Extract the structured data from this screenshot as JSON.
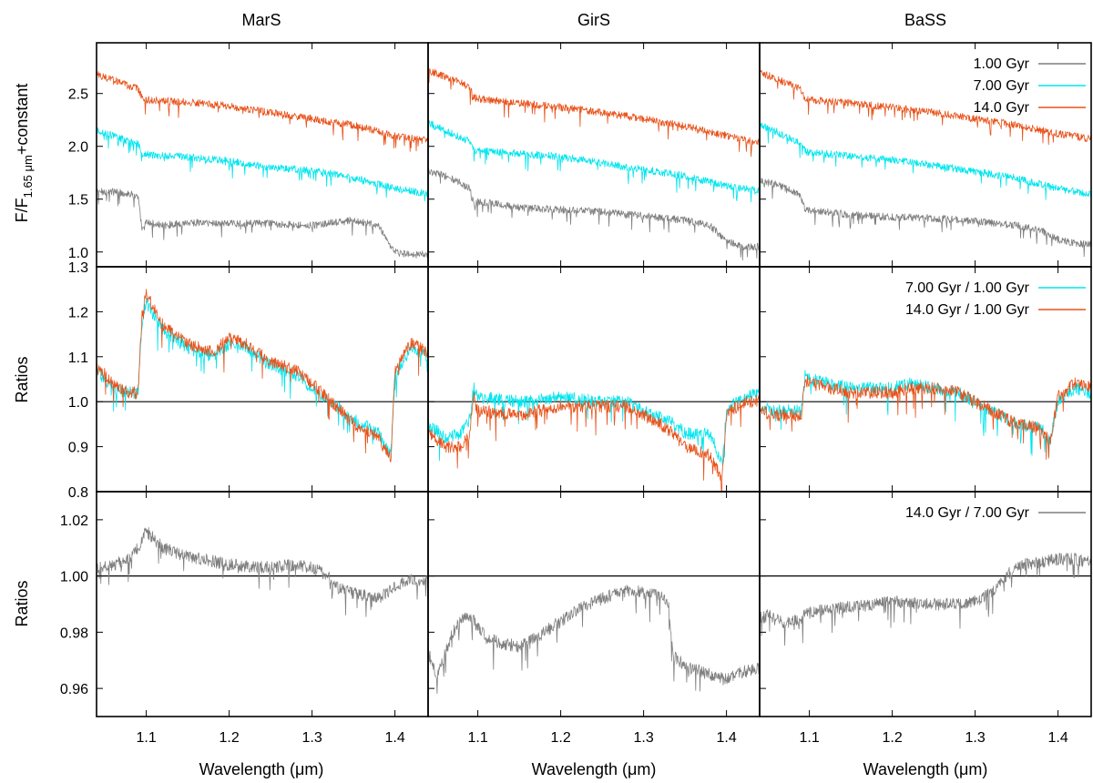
{
  "figure": {
    "column_titles": [
      "MarS",
      "GirS",
      "BaSS"
    ],
    "xlabel": "Wavelength (μm)",
    "row_ylabels": {
      "top_main": "F/F",
      "top_sub": "1.65 μm",
      "top_tail": "+constant",
      "middle": "Ratios",
      "bottom": "Ratios"
    }
  },
  "legends": {
    "top": [
      "1.00 Gyr",
      "7.00 Gyr",
      "14.0 Gyr"
    ],
    "middle": [
      "7.00 Gyr / 1.00 Gyr",
      "14.0 Gyr / 1.00 Gyr"
    ],
    "bottom": [
      "14.0 Gyr / 7.00 Gyr"
    ]
  },
  "colors": {
    "gray": "#7f7f7f",
    "cyan": "#00e5ee",
    "orange": "#e8521a",
    "axis": "#000000"
  },
  "chart_data": [
    {
      "type": "line",
      "title": "MarS",
      "xlabel": "",
      "ylabel": "F/F1.65 μm+constant",
      "xlim": [
        1.04,
        1.44
      ],
      "ylim": [
        0.86,
        2.98
      ],
      "x_ticks": [
        "1.1",
        "1.2",
        "1.3",
        "1.4"
      ],
      "y_ticks": [
        "1.0",
        "1.5",
        "2.0",
        "2.5"
      ],
      "grid": false,
      "legend": "none",
      "series": [
        {
          "name": "1.00 Gyr",
          "color": "gray",
          "x": [
            1.04,
            1.06,
            1.08,
            1.09,
            1.095,
            1.1,
            1.12,
            1.15,
            1.2,
            1.25,
            1.3,
            1.35,
            1.38,
            1.39,
            1.4,
            1.42,
            1.44
          ],
          "y": [
            1.57,
            1.57,
            1.55,
            1.52,
            1.2,
            1.28,
            1.25,
            1.28,
            1.27,
            1.27,
            1.25,
            1.3,
            1.25,
            1.1,
            1.0,
            0.97,
            0.98
          ]
        },
        {
          "name": "7.00 Gyr",
          "color": "cyan",
          "x": [
            1.04,
            1.06,
            1.08,
            1.09,
            1.095,
            1.1,
            1.15,
            1.2,
            1.25,
            1.3,
            1.35,
            1.4,
            1.44
          ],
          "y": [
            2.15,
            2.1,
            2.04,
            2.02,
            1.93,
            1.92,
            1.9,
            1.86,
            1.8,
            1.77,
            1.7,
            1.6,
            1.55
          ]
        },
        {
          "name": "14.0 Gyr",
          "color": "orange",
          "x": [
            1.04,
            1.06,
            1.08,
            1.09,
            1.095,
            1.1,
            1.15,
            1.2,
            1.25,
            1.3,
            1.35,
            1.4,
            1.44
          ],
          "y": [
            2.68,
            2.63,
            2.57,
            2.55,
            2.45,
            2.44,
            2.42,
            2.38,
            2.32,
            2.26,
            2.2,
            2.1,
            2.05
          ]
        }
      ]
    },
    {
      "type": "line",
      "title": "GirS",
      "xlabel": "",
      "ylabel": "",
      "xlim": [
        1.04,
        1.44
      ],
      "ylim": [
        0.86,
        2.98
      ],
      "x_ticks": [
        "1.1",
        "1.2",
        "1.3",
        "1.4"
      ],
      "y_ticks": [],
      "grid": false,
      "legend": "none",
      "series": [
        {
          "name": "1.00 Gyr",
          "color": "gray",
          "x": [
            1.04,
            1.06,
            1.08,
            1.09,
            1.095,
            1.1,
            1.15,
            1.2,
            1.25,
            1.3,
            1.35,
            1.38,
            1.4,
            1.42,
            1.44
          ],
          "y": [
            1.77,
            1.72,
            1.65,
            1.6,
            1.45,
            1.48,
            1.42,
            1.4,
            1.38,
            1.34,
            1.3,
            1.25,
            1.1,
            1.05,
            1.05
          ]
        },
        {
          "name": "7.00 Gyr",
          "color": "cyan",
          "x": [
            1.04,
            1.06,
            1.08,
            1.09,
            1.095,
            1.1,
            1.15,
            1.2,
            1.25,
            1.3,
            1.35,
            1.4,
            1.44
          ],
          "y": [
            2.22,
            2.15,
            2.08,
            2.05,
            1.97,
            1.96,
            1.93,
            1.9,
            1.84,
            1.78,
            1.72,
            1.62,
            1.58
          ]
        },
        {
          "name": "14.0 Gyr",
          "color": "orange",
          "x": [
            1.04,
            1.06,
            1.08,
            1.09,
            1.095,
            1.1,
            1.15,
            1.2,
            1.25,
            1.3,
            1.35,
            1.4,
            1.44
          ],
          "y": [
            2.72,
            2.66,
            2.6,
            2.56,
            2.46,
            2.45,
            2.41,
            2.37,
            2.32,
            2.26,
            2.19,
            2.1,
            2.03
          ]
        }
      ]
    },
    {
      "type": "line",
      "title": "BaSS",
      "xlabel": "",
      "ylabel": "",
      "xlim": [
        1.04,
        1.44
      ],
      "ylim": [
        0.86,
        2.98
      ],
      "x_ticks": [
        "1.1",
        "1.2",
        "1.3",
        "1.4"
      ],
      "y_ticks": [],
      "grid": false,
      "legend": "top-right",
      "series": [
        {
          "name": "1.00 Gyr",
          "color": "gray",
          "x": [
            1.04,
            1.06,
            1.08,
            1.09,
            1.095,
            1.1,
            1.15,
            1.2,
            1.25,
            1.3,
            1.35,
            1.38,
            1.4,
            1.42,
            1.44
          ],
          "y": [
            1.68,
            1.64,
            1.57,
            1.52,
            1.38,
            1.4,
            1.35,
            1.33,
            1.32,
            1.29,
            1.25,
            1.2,
            1.12,
            1.08,
            1.07
          ]
        },
        {
          "name": "7.00 Gyr",
          "color": "cyan",
          "x": [
            1.04,
            1.06,
            1.08,
            1.09,
            1.095,
            1.1,
            1.15,
            1.2,
            1.25,
            1.3,
            1.35,
            1.4,
            1.44
          ],
          "y": [
            2.2,
            2.14,
            2.06,
            2.03,
            1.95,
            1.94,
            1.91,
            1.87,
            1.82,
            1.76,
            1.7,
            1.6,
            1.55
          ]
        },
        {
          "name": "14.0 Gyr",
          "color": "orange",
          "x": [
            1.04,
            1.06,
            1.08,
            1.09,
            1.095,
            1.1,
            1.15,
            1.2,
            1.25,
            1.3,
            1.35,
            1.4,
            1.44
          ],
          "y": [
            2.7,
            2.64,
            2.57,
            2.54,
            2.45,
            2.44,
            2.41,
            2.37,
            2.32,
            2.26,
            2.2,
            2.12,
            2.07
          ]
        }
      ]
    },
    {
      "type": "line",
      "title": "",
      "xlabel": "",
      "ylabel": "Ratios",
      "xlim": [
        1.04,
        1.44
      ],
      "ylim": [
        0.8,
        1.3
      ],
      "x_ticks": [
        "1.1",
        "1.2",
        "1.3",
        "1.4"
      ],
      "y_ticks": [
        "0.8",
        "0.9",
        "1.0",
        "1.1",
        "1.2",
        "1.3"
      ],
      "reference_line": 1.0,
      "grid": false,
      "legend": "none",
      "series": [
        {
          "name": "7.00 Gyr / 1.00 Gyr",
          "color": "cyan",
          "x": [
            1.04,
            1.06,
            1.08,
            1.09,
            1.095,
            1.1,
            1.12,
            1.15,
            1.18,
            1.2,
            1.22,
            1.25,
            1.28,
            1.3,
            1.33,
            1.35,
            1.38,
            1.395,
            1.4,
            1.42,
            1.44
          ],
          "y": [
            1.07,
            1.03,
            1.02,
            1.02,
            1.18,
            1.22,
            1.16,
            1.12,
            1.1,
            1.13,
            1.12,
            1.08,
            1.06,
            1.03,
            0.99,
            0.96,
            0.93,
            0.88,
            1.06,
            1.12,
            1.1
          ]
        },
        {
          "name": "14.0 Gyr / 1.00 Gyr",
          "color": "orange",
          "x": [
            1.04,
            1.06,
            1.08,
            1.09,
            1.095,
            1.1,
            1.12,
            1.15,
            1.18,
            1.2,
            1.22,
            1.25,
            1.28,
            1.3,
            1.33,
            1.35,
            1.38,
            1.395,
            1.4,
            1.42,
            1.44
          ],
          "y": [
            1.08,
            1.04,
            1.02,
            1.02,
            1.2,
            1.24,
            1.17,
            1.13,
            1.11,
            1.14,
            1.13,
            1.09,
            1.07,
            1.04,
            0.99,
            0.95,
            0.92,
            0.87,
            1.07,
            1.13,
            1.11
          ]
        }
      ]
    },
    {
      "type": "line",
      "title": "",
      "xlabel": "",
      "ylabel": "",
      "xlim": [
        1.04,
        1.44
      ],
      "ylim": [
        0.8,
        1.3
      ],
      "x_ticks": [
        "1.1",
        "1.2",
        "1.3",
        "1.4"
      ],
      "y_ticks": [],
      "reference_line": 1.0,
      "grid": false,
      "legend": "none",
      "series": [
        {
          "name": "7.00 Gyr / 1.00 Gyr",
          "color": "cyan",
          "x": [
            1.04,
            1.06,
            1.08,
            1.09,
            1.095,
            1.1,
            1.15,
            1.2,
            1.25,
            1.28,
            1.3,
            1.33,
            1.35,
            1.38,
            1.395,
            1.4,
            1.42,
            1.44
          ],
          "y": [
            0.95,
            0.92,
            0.93,
            0.96,
            1.03,
            1.01,
            1.0,
            1.01,
            1.0,
            1.0,
            0.98,
            0.96,
            0.93,
            0.93,
            0.86,
            0.98,
            1.01,
            1.02
          ]
        },
        {
          "name": "14.0 Gyr / 1.00 Gyr",
          "color": "orange",
          "x": [
            1.04,
            1.06,
            1.08,
            1.09,
            1.095,
            1.1,
            1.15,
            1.2,
            1.25,
            1.28,
            1.3,
            1.33,
            1.35,
            1.38,
            1.395,
            1.4,
            1.42,
            1.44
          ],
          "y": [
            0.93,
            0.9,
            0.9,
            0.93,
            1.01,
            0.98,
            0.97,
            0.99,
            0.99,
            0.99,
            0.97,
            0.94,
            0.9,
            0.88,
            0.83,
            0.97,
            1.0,
            1.0
          ]
        }
      ]
    },
    {
      "type": "line",
      "title": "",
      "xlabel": "",
      "ylabel": "",
      "xlim": [
        1.04,
        1.44
      ],
      "ylim": [
        0.8,
        1.3
      ],
      "x_ticks": [
        "1.1",
        "1.2",
        "1.3",
        "1.4"
      ],
      "y_ticks": [],
      "reference_line": 1.0,
      "grid": false,
      "legend": "top-right",
      "series": [
        {
          "name": "7.00 Gyr / 1.00 Gyr",
          "color": "cyan",
          "x": [
            1.04,
            1.06,
            1.08,
            1.09,
            1.095,
            1.1,
            1.15,
            1.2,
            1.22,
            1.25,
            1.28,
            1.3,
            1.33,
            1.35,
            1.38,
            1.39,
            1.4,
            1.42,
            1.44
          ],
          "y": [
            0.99,
            0.98,
            0.98,
            0.98,
            1.06,
            1.05,
            1.03,
            1.03,
            1.04,
            1.03,
            1.02,
            1.0,
            0.97,
            0.95,
            0.94,
            0.91,
            1.0,
            1.03,
            1.02
          ]
        },
        {
          "name": "14.0 Gyr / 1.00 Gyr",
          "color": "orange",
          "x": [
            1.04,
            1.06,
            1.08,
            1.09,
            1.095,
            1.1,
            1.15,
            1.2,
            1.22,
            1.25,
            1.28,
            1.3,
            1.33,
            1.35,
            1.38,
            1.39,
            1.4,
            1.42,
            1.44
          ],
          "y": [
            0.98,
            0.97,
            0.97,
            0.97,
            1.05,
            1.04,
            1.02,
            1.02,
            1.03,
            1.03,
            1.02,
            1.0,
            0.97,
            0.95,
            0.94,
            0.91,
            1.01,
            1.04,
            1.03
          ]
        }
      ]
    },
    {
      "type": "line",
      "title": "",
      "xlabel": "Wavelength (μm)",
      "ylabel": "Ratios",
      "xlim": [
        1.04,
        1.44
      ],
      "ylim": [
        0.95,
        1.03
      ],
      "x_ticks": [
        "1.1",
        "1.2",
        "1.3",
        "1.4"
      ],
      "y_ticks": [
        "0.96",
        "0.98",
        "1.00",
        "1.02"
      ],
      "reference_line": 1.0,
      "grid": false,
      "legend": "none",
      "series": [
        {
          "name": "14.0 Gyr / 7.00 Gyr",
          "color": "gray",
          "x": [
            1.04,
            1.06,
            1.08,
            1.09,
            1.1,
            1.12,
            1.15,
            1.2,
            1.25,
            1.28,
            1.3,
            1.32,
            1.33,
            1.35,
            1.38,
            1.4,
            1.42,
            1.44
          ],
          "y": [
            1.003,
            1.004,
            1.006,
            1.01,
            1.016,
            1.01,
            1.007,
            1.004,
            1.003,
            1.004,
            1.003,
            1.0,
            0.996,
            0.994,
            0.992,
            0.996,
            0.999,
            0.998
          ]
        }
      ]
    },
    {
      "type": "line",
      "title": "",
      "xlabel": "Wavelength (μm)",
      "ylabel": "",
      "xlim": [
        1.04,
        1.44
      ],
      "ylim": [
        0.95,
        1.03
      ],
      "x_ticks": [
        "1.1",
        "1.2",
        "1.3",
        "1.4"
      ],
      "y_ticks": [],
      "reference_line": 1.0,
      "grid": false,
      "legend": "none",
      "series": [
        {
          "name": "14.0 Gyr / 7.00 Gyr",
          "color": "gray",
          "x": [
            1.04,
            1.05,
            1.06,
            1.07,
            1.08,
            1.09,
            1.1,
            1.11,
            1.13,
            1.15,
            1.17,
            1.2,
            1.22,
            1.25,
            1.28,
            1.3,
            1.32,
            1.33,
            1.335,
            1.35,
            1.38,
            1.4,
            1.42,
            1.44
          ],
          "y": [
            0.973,
            0.965,
            0.972,
            0.98,
            0.984,
            0.986,
            0.982,
            0.978,
            0.976,
            0.975,
            0.978,
            0.984,
            0.988,
            0.992,
            0.995,
            0.994,
            0.993,
            0.99,
            0.972,
            0.968,
            0.965,
            0.963,
            0.966,
            0.967
          ]
        }
      ]
    },
    {
      "type": "line",
      "title": "",
      "xlabel": "Wavelength (μm)",
      "ylabel": "",
      "xlim": [
        1.04,
        1.44
      ],
      "ylim": [
        0.95,
        1.03
      ],
      "x_ticks": [
        "1.1",
        "1.2",
        "1.3",
        "1.4"
      ],
      "y_ticks": [],
      "reference_line": 1.0,
      "grid": false,
      "legend": "top-right",
      "series": [
        {
          "name": "14.0 Gyr / 7.00 Gyr",
          "color": "gray",
          "x": [
            1.04,
            1.05,
            1.07,
            1.09,
            1.1,
            1.12,
            1.15,
            1.18,
            1.2,
            1.25,
            1.28,
            1.3,
            1.32,
            1.34,
            1.36,
            1.38,
            1.4,
            1.42,
            1.44
          ],
          "y": [
            0.985,
            0.986,
            0.983,
            0.985,
            0.987,
            0.988,
            0.989,
            0.99,
            0.991,
            0.99,
            0.99,
            0.991,
            0.994,
            1.001,
            1.004,
            1.005,
            1.006,
            1.006,
            1.005
          ]
        }
      ]
    }
  ]
}
